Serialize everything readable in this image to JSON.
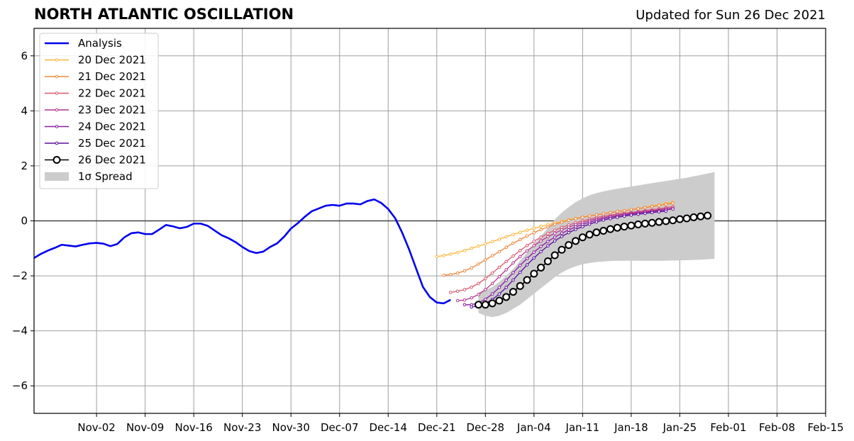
{
  "chart_data": {
    "type": "line",
    "title": "NORTH ATLANTIC OSCILLATION",
    "subtitle": "Updated for Sun 26 Dec 2021",
    "xlim": [
      "2021-10-24",
      "2022-02-15"
    ],
    "ylim": [
      -7,
      7
    ],
    "y_ticks": [
      -6,
      -4,
      -2,
      0,
      2,
      4,
      6
    ],
    "y_tick_labels": [
      "−6",
      "−4",
      "−2",
      "0",
      "2",
      "4",
      "6"
    ],
    "x_ticks": [
      "2021-11-02",
      "2021-11-09",
      "2021-11-16",
      "2021-11-23",
      "2021-11-30",
      "2021-12-07",
      "2021-12-14",
      "2021-12-21",
      "2021-12-28",
      "2022-01-04",
      "2022-01-11",
      "2022-01-18",
      "2022-01-25",
      "2022-02-01",
      "2022-02-08",
      "2022-02-15"
    ],
    "x_tick_labels": [
      "Nov-02",
      "Nov-09",
      "Nov-16",
      "Nov-23",
      "Nov-30",
      "Dec-07",
      "Dec-14",
      "Dec-21",
      "Dec-28",
      "Jan-04",
      "Jan-11",
      "Jan-18",
      "Jan-25",
      "Feb-01",
      "Feb-08",
      "Feb-15"
    ],
    "grid": true,
    "legend_position": "top-left",
    "analysis": {
      "name": "Analysis",
      "color": "#0000ee",
      "start": "2021-10-24",
      "values": [
        -1.35,
        -1.2,
        -1.08,
        -0.98,
        -0.87,
        -0.9,
        -0.93,
        -0.87,
        -0.82,
        -0.8,
        -0.83,
        -0.92,
        -0.84,
        -0.6,
        -0.45,
        -0.42,
        -0.48,
        -0.48,
        -0.32,
        -0.15,
        -0.2,
        -0.27,
        -0.22,
        -0.1,
        -0.1,
        -0.18,
        -0.35,
        -0.52,
        -0.63,
        -0.77,
        -0.95,
        -1.1,
        -1.17,
        -1.12,
        -0.95,
        -0.82,
        -0.58,
        -0.28,
        -0.08,
        0.15,
        0.35,
        0.45,
        0.55,
        0.58,
        0.55,
        0.63,
        0.63,
        0.6,
        0.72,
        0.78,
        0.65,
        0.43,
        0.1,
        -0.42,
        -1.03,
        -1.72,
        -2.4,
        -2.77,
        -2.97,
        -3.0,
        -2.87
      ]
    },
    "forecasts": [
      {
        "name": "20 Dec 2021",
        "color": "#fbb63a",
        "start": "2021-12-21",
        "values": [
          -1.3,
          -1.26,
          -1.21,
          -1.15,
          -1.08,
          -1.0,
          -0.92,
          -0.84,
          -0.75,
          -0.67,
          -0.58,
          -0.5,
          -0.42,
          -0.34,
          -0.27,
          -0.2,
          -0.14,
          -0.08,
          -0.02,
          0.04,
          0.09,
          0.14,
          0.18,
          0.22,
          0.26,
          0.3,
          0.33,
          0.37,
          0.41,
          0.45,
          0.49,
          0.54,
          0.58,
          0.63,
          0.67
        ]
      },
      {
        "name": "21 Dec 2021",
        "color": "#f0863a",
        "start": "2021-12-22",
        "values": [
          -1.98,
          -1.95,
          -1.9,
          -1.82,
          -1.71,
          -1.57,
          -1.42,
          -1.27,
          -1.12,
          -0.96,
          -0.81,
          -0.68,
          -0.55,
          -0.43,
          -0.32,
          -0.22,
          -0.13,
          -0.05,
          0.02,
          0.08,
          0.13,
          0.18,
          0.22,
          0.26,
          0.3,
          0.34,
          0.37,
          0.41,
          0.44,
          0.48,
          0.52,
          0.56,
          0.6,
          0.64
        ]
      },
      {
        "name": "22 Dec 2021",
        "color": "#d9596e",
        "start": "2021-12-23",
        "values": [
          -2.6,
          -2.56,
          -2.5,
          -2.41,
          -2.28,
          -2.1,
          -1.9,
          -1.69,
          -1.48,
          -1.28,
          -1.08,
          -0.9,
          -0.74,
          -0.59,
          -0.46,
          -0.34,
          -0.24,
          -0.15,
          -0.07,
          0.0,
          0.06,
          0.12,
          0.17,
          0.21,
          0.25,
          0.28,
          0.31,
          0.34,
          0.38,
          0.41,
          0.44,
          0.48,
          0.52
        ]
      },
      {
        "name": "23 Dec 2021",
        "color": "#b5378e",
        "start": "2021-12-24",
        "values": [
          -2.9,
          -2.88,
          -2.8,
          -2.68,
          -2.5,
          -2.28,
          -2.03,
          -1.78,
          -1.53,
          -1.3,
          -1.09,
          -0.9,
          -0.73,
          -0.58,
          -0.45,
          -0.33,
          -0.23,
          -0.14,
          -0.06,
          0.01,
          0.07,
          0.12,
          0.17,
          0.21,
          0.25,
          0.28,
          0.31,
          0.34,
          0.37,
          0.4,
          0.44,
          0.47
        ]
      },
      {
        "name": "24 Dec 2021",
        "color": "#8a1aa3",
        "start": "2021-12-25",
        "values": [
          -3.05,
          -3.05,
          -2.98,
          -2.85,
          -2.66,
          -2.42,
          -2.16,
          -1.89,
          -1.62,
          -1.37,
          -1.14,
          -0.93,
          -0.75,
          -0.59,
          -0.45,
          -0.33,
          -0.22,
          -0.13,
          -0.05,
          0.02,
          0.08,
          0.13,
          0.17,
          0.21,
          0.25,
          0.28,
          0.31,
          0.34,
          0.37,
          0.4,
          0.43
        ]
      },
      {
        "name": "25 Dec 2021",
        "color": "#5c0d9e",
        "start": "2021-12-26",
        "values": [
          -3.13,
          -3.1,
          -3.0,
          -2.86,
          -2.66,
          -2.42,
          -2.15,
          -1.87,
          -1.6,
          -1.35,
          -1.12,
          -0.91,
          -0.73,
          -0.57,
          -0.43,
          -0.31,
          -0.21,
          -0.12,
          -0.04,
          0.03,
          0.08,
          0.13,
          0.17,
          0.21,
          0.24,
          0.27,
          0.3,
          0.33,
          0.35
        ]
      },
      {
        "name": "26 Dec 2021",
        "color": "#000000",
        "marker": "open-circle",
        "start": "2021-12-27",
        "values": [
          -3.05,
          -3.05,
          -3.0,
          -2.9,
          -2.77,
          -2.58,
          -2.37,
          -2.15,
          -1.92,
          -1.7,
          -1.47,
          -1.25,
          -1.05,
          -0.88,
          -0.73,
          -0.6,
          -0.5,
          -0.42,
          -0.36,
          -0.3,
          -0.25,
          -0.21,
          -0.17,
          -0.13,
          -0.1,
          -0.07,
          -0.04,
          -0.01,
          0.02,
          0.06,
          0.09,
          0.13,
          0.16,
          0.19
        ]
      }
    ],
    "spread": {
      "name": "1σ Spread",
      "color": "#cccccc",
      "start": "2021-12-27",
      "upper": [
        -2.6,
        -2.52,
        -2.4,
        -2.22,
        -2.0,
        -1.75,
        -1.45,
        -1.15,
        -0.85,
        -0.55,
        -0.25,
        0.05,
        0.3,
        0.5,
        0.68,
        0.82,
        0.93,
        1.01,
        1.07,
        1.12,
        1.17,
        1.21,
        1.25,
        1.29,
        1.33,
        1.37,
        1.41,
        1.45,
        1.49,
        1.53,
        1.57,
        1.62,
        1.67,
        1.72,
        1.78
      ],
      "lower": [
        -3.35,
        -3.45,
        -3.5,
        -3.45,
        -3.35,
        -3.2,
        -3.05,
        -2.85,
        -2.65,
        -2.45,
        -2.25,
        -2.05,
        -1.88,
        -1.75,
        -1.65,
        -1.58,
        -1.53,
        -1.5,
        -1.48,
        -1.46,
        -1.45,
        -1.45,
        -1.45,
        -1.45,
        -1.45,
        -1.45,
        -1.45,
        -1.45,
        -1.44,
        -1.44,
        -1.43,
        -1.42,
        -1.41,
        -1.4,
        -1.38
      ]
    }
  }
}
